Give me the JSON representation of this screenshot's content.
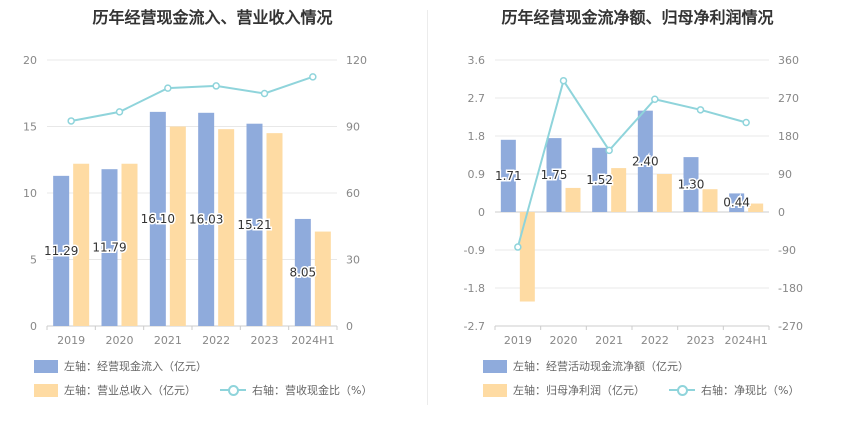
{
  "colors": {
    "bar1": "#8fabdc",
    "bar2": "#fedba3",
    "line": "#8fd4db",
    "grid": "#e8e8e8",
    "axis": "#cccccc",
    "tick": "#888888",
    "label": "#333333"
  },
  "chart_data": [
    {
      "type": "bar",
      "title": "历年经营现金流入、营业收入情况",
      "categories": [
        "2019",
        "2020",
        "2021",
        "2022",
        "2023",
        "2024H1"
      ],
      "left_axis": {
        "ylim": [
          0,
          20
        ],
        "ticks": [
          "0",
          "5",
          "10",
          "15",
          "20"
        ]
      },
      "right_axis": {
        "ylim": [
          0,
          120
        ],
        "ticks": [
          "0",
          "30",
          "60",
          "90",
          "120"
        ]
      },
      "series": [
        {
          "name": "左轴：经营现金流入（亿元）",
          "type": "bar",
          "axis": "left",
          "values": [
            11.29,
            11.79,
            16.1,
            16.03,
            15.21,
            8.05
          ],
          "labels": [
            "11.29",
            "11.79",
            "16.10",
            "16.03",
            "15.21",
            "8.05"
          ]
        },
        {
          "name": "左轴：营业总收入（亿元）",
          "type": "bar",
          "axis": "left",
          "values": [
            12.2,
            12.2,
            15.0,
            14.8,
            14.5,
            7.1
          ]
        },
        {
          "name": "右轴：营收现金比（%）",
          "type": "line",
          "axis": "right",
          "values": [
            92.5,
            96.6,
            107.3,
            108.3,
            104.9,
            112.4
          ]
        }
      ],
      "legend_placement": "bottom"
    },
    {
      "type": "bar",
      "title": "历年经营现金流净额、归母净利润情况",
      "categories": [
        "2019",
        "2020",
        "2021",
        "2022",
        "2023",
        "2024H1"
      ],
      "left_axis": {
        "ylim": [
          -2.7,
          3.6
        ],
        "ticks": [
          "-2.7",
          "-1.8",
          "-0.9",
          "0",
          "0.9",
          "1.8",
          "2.7",
          "3.6"
        ]
      },
      "right_axis": {
        "ylim": [
          -270,
          360
        ],
        "ticks": [
          "-270",
          "-180",
          "-90",
          "0",
          "90",
          "180",
          "270",
          "360"
        ]
      },
      "series": [
        {
          "name": "左轴：经营活动现金流净额（亿元）",
          "type": "bar",
          "axis": "left",
          "values": [
            1.71,
            1.75,
            1.52,
            2.4,
            1.3,
            0.44
          ],
          "labels": [
            "1.71",
            "1.75",
            "1.52",
            "2.40",
            "1.30",
            "0.44"
          ]
        },
        {
          "name": "左轴：归母净利润（亿元）",
          "type": "bar",
          "axis": "left",
          "values": [
            -2.12,
            0.57,
            1.04,
            0.9,
            0.54,
            0.2
          ]
        },
        {
          "name": "右轴：净现比（%）",
          "type": "line",
          "axis": "right",
          "values": [
            -83,
            311,
            146,
            267,
            242,
            212
          ]
        }
      ],
      "legend_placement": "bottom"
    }
  ]
}
